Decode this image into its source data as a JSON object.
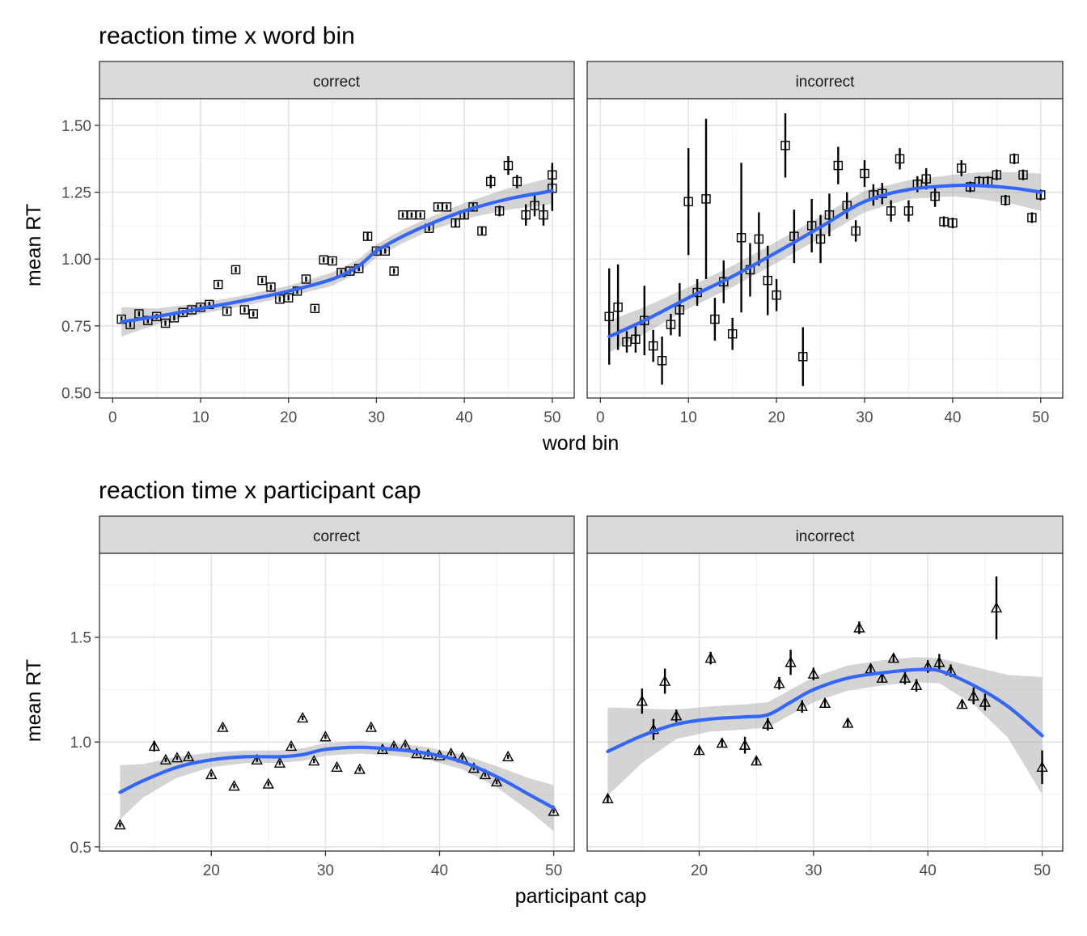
{
  "figure": {
    "rows": [
      {
        "title": "reaction time x word bin",
        "xlabel": "word bin",
        "ylabel": "mean RT",
        "marker": "square",
        "xlim": [
          -1.5,
          52.5
        ],
        "ylim": [
          0.48,
          1.6
        ],
        "xticks": [
          0,
          10,
          20,
          30,
          40,
          50
        ],
        "xtick_labels": [
          "0",
          "10",
          "20",
          "30",
          "40",
          "50"
        ],
        "yticks": [
          0.5,
          0.75,
          1.0,
          1.25,
          1.5
        ],
        "ytick_labels": [
          "0.50",
          "0.75",
          "1.00",
          "1.25",
          "1.50"
        ]
      },
      {
        "title": "reaction time x participant cap",
        "xlabel": "participant cap",
        "ylabel": "mean RT",
        "marker": "triangle",
        "xlim": [
          10.2,
          51.8
        ],
        "ylim": [
          0.48,
          1.9
        ],
        "xticks": [
          20,
          30,
          40,
          50
        ],
        "xtick_labels": [
          "20",
          "30",
          "40",
          "50"
        ],
        "yticks": [
          0.5,
          1.0,
          1.5
        ],
        "ytick_labels": [
          "0.5",
          "1.0",
          "1.5"
        ]
      }
    ],
    "facets": [
      "correct",
      "incorrect"
    ],
    "colors": {
      "smooth": "#3366FF",
      "band": "#999999",
      "strip": "#d9d9d9",
      "points": "#000000"
    }
  },
  "chart_data": [
    {
      "type": "scatter",
      "title": "reaction time x word bin",
      "facet": "correct",
      "xlabel": "word bin",
      "ylabel": "mean RT",
      "points": [
        [
          1,
          0.775,
          0.01
        ],
        [
          2,
          0.755,
          0.01
        ],
        [
          3,
          0.795,
          0.01
        ],
        [
          4,
          0.77,
          0.01
        ],
        [
          5,
          0.785,
          0.01
        ],
        [
          6,
          0.76,
          0.01
        ],
        [
          7,
          0.78,
          0.01
        ],
        [
          8,
          0.8,
          0.01
        ],
        [
          9,
          0.81,
          0.01
        ],
        [
          10,
          0.82,
          0.01
        ],
        [
          11,
          0.83,
          0.01
        ],
        [
          12,
          0.905,
          0.01
        ],
        [
          13,
          0.805,
          0.01
        ],
        [
          14,
          0.96,
          0.01
        ],
        [
          15,
          0.81,
          0.01
        ],
        [
          16,
          0.795,
          0.01
        ],
        [
          17,
          0.92,
          0.01
        ],
        [
          18,
          0.895,
          0.01
        ],
        [
          19,
          0.85,
          0.01
        ],
        [
          20,
          0.855,
          0.01
        ],
        [
          21,
          0.88,
          0.01
        ],
        [
          22,
          0.925,
          0.01
        ],
        [
          23,
          0.815,
          0.01
        ],
        [
          24,
          0.997,
          0.01
        ],
        [
          25,
          0.993,
          0.01
        ],
        [
          26,
          0.95,
          0.01
        ],
        [
          27,
          0.955,
          0.01
        ],
        [
          28,
          0.965,
          0.01
        ],
        [
          29,
          1.085,
          0.015
        ],
        [
          30,
          1.03,
          0.01
        ],
        [
          31,
          1.03,
          0.01
        ],
        [
          32,
          0.955,
          0.01
        ],
        [
          33,
          1.165,
          0.01
        ],
        [
          34,
          1.165,
          0.01
        ],
        [
          35,
          1.165,
          0.01
        ],
        [
          36,
          1.115,
          0.01
        ],
        [
          37,
          1.195,
          0.01
        ],
        [
          38,
          1.195,
          0.01
        ],
        [
          39,
          1.135,
          0.015
        ],
        [
          40,
          1.165,
          0.015
        ],
        [
          41,
          1.195,
          0.015
        ],
        [
          42,
          1.105,
          0.015
        ],
        [
          43,
          1.29,
          0.025
        ],
        [
          44,
          1.18,
          0.02
        ],
        [
          45,
          1.35,
          0.035
        ],
        [
          46,
          1.29,
          0.025
        ],
        [
          47,
          1.165,
          0.04
        ],
        [
          48,
          1.2,
          0.04
        ],
        [
          49,
          1.165,
          0.04
        ],
        [
          50,
          1.315,
          0.045
        ],
        [
          50,
          1.265,
          0.085
        ]
      ],
      "smooth": [
        [
          1,
          0.765
        ],
        [
          5,
          0.785
        ],
        [
          10,
          0.815
        ],
        [
          15,
          0.845
        ],
        [
          20,
          0.88
        ],
        [
          25,
          0.925
        ],
        [
          28,
          0.975
        ],
        [
          30,
          1.03
        ],
        [
          33,
          1.085
        ],
        [
          36,
          1.13
        ],
        [
          40,
          1.18
        ],
        [
          45,
          1.225
        ],
        [
          50,
          1.255
        ]
      ],
      "band": [
        0.055,
        0.03,
        0.02,
        0.02,
        0.02,
        0.025,
        0.025,
        0.025,
        0.025,
        0.025,
        0.03,
        0.04,
        0.05
      ]
    },
    {
      "type": "scatter",
      "title": "reaction time x word bin",
      "facet": "incorrect",
      "xlabel": "word bin",
      "ylabel": "mean RT",
      "points": [
        [
          1,
          0.785,
          0.18
        ],
        [
          2,
          0.82,
          0.16
        ],
        [
          3,
          0.69,
          0.04
        ],
        [
          4,
          0.7,
          0.05
        ],
        [
          5,
          0.77,
          0.13
        ],
        [
          6,
          0.675,
          0.06
        ],
        [
          7,
          0.62,
          0.09
        ],
        [
          8,
          0.755,
          0.04
        ],
        [
          9,
          0.81,
          0.1
        ],
        [
          10,
          1.215,
          0.2
        ],
        [
          11,
          0.875,
          0.05
        ],
        [
          12,
          1.225,
          0.3
        ],
        [
          13,
          0.775,
          0.08
        ],
        [
          14,
          0.915,
          0.08
        ],
        [
          15,
          0.72,
          0.06
        ],
        [
          16,
          1.08,
          0.28
        ],
        [
          17,
          0.96,
          0.1
        ],
        [
          18,
          1.075,
          0.1
        ],
        [
          19,
          0.92,
          0.13
        ],
        [
          20,
          0.865,
          0.06
        ],
        [
          21,
          1.425,
          0.12
        ],
        [
          22,
          1.085,
          0.1
        ],
        [
          23,
          0.635,
          0.11
        ],
        [
          24,
          1.125,
          0.1
        ],
        [
          25,
          1.075,
          0.09
        ],
        [
          26,
          1.165,
          0.08
        ],
        [
          27,
          1.35,
          0.07
        ],
        [
          28,
          1.2,
          0.05
        ],
        [
          29,
          1.105,
          0.04
        ],
        [
          30,
          1.32,
          0.05
        ],
        [
          31,
          1.24,
          0.04
        ],
        [
          32,
          1.245,
          0.04
        ],
        [
          33,
          1.18,
          0.04
        ],
        [
          34,
          1.375,
          0.04
        ],
        [
          35,
          1.18,
          0.04
        ],
        [
          36,
          1.28,
          0.03
        ],
        [
          37,
          1.3,
          0.04
        ],
        [
          38,
          1.235,
          0.04
        ],
        [
          39,
          1.14,
          0.02
        ],
        [
          40,
          1.135,
          0.02
        ],
        [
          41,
          1.34,
          0.03
        ],
        [
          42,
          1.27,
          0.02
        ],
        [
          43,
          1.29,
          0.02
        ],
        [
          44,
          1.29,
          0.02
        ],
        [
          45,
          1.315,
          0.02
        ],
        [
          46,
          1.22,
          0.02
        ],
        [
          47,
          1.375,
          0.02
        ],
        [
          48,
          1.315,
          0.02
        ],
        [
          49,
          1.155,
          0.02
        ],
        [
          50,
          1.24,
          0.02
        ]
      ],
      "smooth": [
        [
          1,
          0.71
        ],
        [
          5,
          0.77
        ],
        [
          10,
          0.855
        ],
        [
          15,
          0.935
        ],
        [
          20,
          1.025
        ],
        [
          25,
          1.12
        ],
        [
          30,
          1.215
        ],
        [
          35,
          1.26
        ],
        [
          40,
          1.275
        ],
        [
          43,
          1.275
        ],
        [
          47,
          1.265
        ],
        [
          50,
          1.25
        ]
      ],
      "band": [
        0.06,
        0.05,
        0.04,
        0.04,
        0.04,
        0.04,
        0.04,
        0.035,
        0.04,
        0.05,
        0.06,
        0.07
      ]
    },
    {
      "type": "scatter",
      "title": "reaction time x participant cap",
      "facet": "correct",
      "xlabel": "participant cap",
      "ylabel": "mean RT",
      "points": [
        [
          12,
          0.605,
          0.01
        ],
        [
          15,
          0.98,
          0.025
        ],
        [
          16,
          0.915,
          0.01
        ],
        [
          17,
          0.925,
          0.01
        ],
        [
          18,
          0.93,
          0.01
        ],
        [
          20,
          0.845,
          0.01
        ],
        [
          21,
          1.07,
          0.01
        ],
        [
          22,
          0.79,
          0.01
        ],
        [
          24,
          0.915,
          0.01
        ],
        [
          25,
          0.8,
          0.01
        ],
        [
          26,
          0.9,
          0.01
        ],
        [
          27,
          0.98,
          0.01
        ],
        [
          28,
          1.115,
          0.01
        ],
        [
          29,
          0.91,
          0.01
        ],
        [
          30,
          1.025,
          0.01
        ],
        [
          31,
          0.88,
          0.01
        ],
        [
          33,
          0.87,
          0.01
        ],
        [
          34,
          1.07,
          0.01
        ],
        [
          35,
          0.965,
          0.01
        ],
        [
          36,
          0.98,
          0.01
        ],
        [
          37,
          0.985,
          0.01
        ],
        [
          38,
          0.945,
          0.01
        ],
        [
          39,
          0.94,
          0.01
        ],
        [
          40,
          0.935,
          0.01
        ],
        [
          41,
          0.945,
          0.01
        ],
        [
          42,
          0.925,
          0.01
        ],
        [
          43,
          0.875,
          0.01
        ],
        [
          44,
          0.845,
          0.01
        ],
        [
          45,
          0.81,
          0.01
        ],
        [
          46,
          0.93,
          0.01
        ],
        [
          50,
          0.67,
          0.01
        ]
      ],
      "smooth": [
        [
          12,
          0.76
        ],
        [
          14,
          0.815
        ],
        [
          17,
          0.88
        ],
        [
          20,
          0.915
        ],
        [
          23,
          0.93
        ],
        [
          26,
          0.93
        ],
        [
          28,
          0.94
        ],
        [
          30,
          0.965
        ],
        [
          33,
          0.975
        ],
        [
          36,
          0.965
        ],
        [
          39,
          0.945
        ],
        [
          42,
          0.905
        ],
        [
          45,
          0.835
        ],
        [
          48,
          0.745
        ],
        [
          50,
          0.685
        ]
      ],
      "band": [
        0.13,
        0.08,
        0.05,
        0.035,
        0.03,
        0.03,
        0.03,
        0.03,
        0.03,
        0.03,
        0.03,
        0.035,
        0.05,
        0.08,
        0.11
      ]
    },
    {
      "type": "scatter",
      "title": "reaction time x participant cap",
      "facet": "incorrect",
      "xlabel": "participant cap",
      "ylabel": "mean RT",
      "points": [
        [
          12,
          0.73,
          0.02
        ],
        [
          15,
          1.195,
          0.06
        ],
        [
          16,
          1.06,
          0.05
        ],
        [
          17,
          1.29,
          0.06
        ],
        [
          18,
          1.125,
          0.03
        ],
        [
          20,
          0.96,
          0.02
        ],
        [
          21,
          1.4,
          0.03
        ],
        [
          22,
          0.995,
          0.02
        ],
        [
          24,
          0.985,
          0.04
        ],
        [
          25,
          0.91,
          0.02
        ],
        [
          26,
          1.085,
          0.03
        ],
        [
          27,
          1.28,
          0.03
        ],
        [
          28,
          1.38,
          0.06
        ],
        [
          29,
          1.17,
          0.03
        ],
        [
          30,
          1.325,
          0.03
        ],
        [
          31,
          1.185,
          0.02
        ],
        [
          33,
          1.09,
          0.02
        ],
        [
          34,
          1.545,
          0.03
        ],
        [
          35,
          1.35,
          0.02
        ],
        [
          36,
          1.305,
          0.02
        ],
        [
          37,
          1.4,
          0.02
        ],
        [
          38,
          1.305,
          0.03
        ],
        [
          39,
          1.27,
          0.03
        ],
        [
          40,
          1.36,
          0.03
        ],
        [
          41,
          1.38,
          0.04
        ],
        [
          42,
          1.34,
          0.03
        ],
        [
          43,
          1.18,
          0.02
        ],
        [
          44,
          1.22,
          0.04
        ],
        [
          45,
          1.19,
          0.04
        ],
        [
          46,
          1.64,
          0.15
        ],
        [
          50,
          0.88,
          0.08
        ]
      ],
      "smooth": [
        [
          12,
          0.955
        ],
        [
          15,
          1.03
        ],
        [
          18,
          1.085
        ],
        [
          21,
          1.11
        ],
        [
          24,
          1.12
        ],
        [
          26,
          1.13
        ],
        [
          28,
          1.19
        ],
        [
          30,
          1.25
        ],
        [
          33,
          1.305
        ],
        [
          36,
          1.33
        ],
        [
          39,
          1.345
        ],
        [
          41,
          1.34
        ],
        [
          44,
          1.27
        ],
        [
          47,
          1.17
        ],
        [
          50,
          1.03
        ]
      ],
      "band": [
        0.21,
        0.13,
        0.07,
        0.06,
        0.06,
        0.06,
        0.06,
        0.06,
        0.06,
        0.06,
        0.06,
        0.06,
        0.09,
        0.15,
        0.28
      ]
    }
  ]
}
